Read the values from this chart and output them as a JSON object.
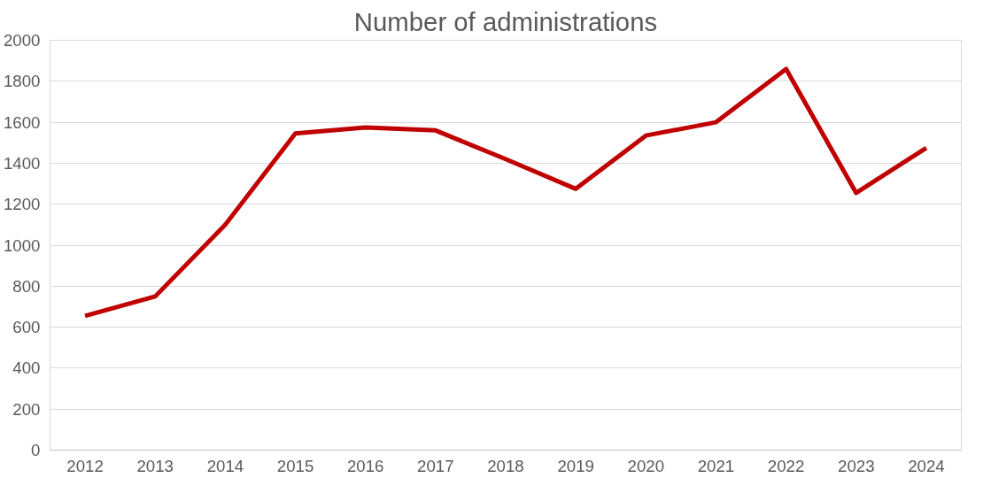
{
  "chart_data": {
    "type": "line",
    "title": "Number of administrations",
    "categories": [
      "2012",
      "2013",
      "2014",
      "2015",
      "2016",
      "2017",
      "2018",
      "2019",
      "2020",
      "2021",
      "2022",
      "2023",
      "2024"
    ],
    "series": [
      {
        "color": "#c00000",
        "values": [
          655,
          750,
          1100,
          1545,
          1575,
          1560,
          1420,
          1275,
          1535,
          1600,
          1860,
          1255,
          1475
        ]
      }
    ],
    "ylim": [
      0,
      2000
    ],
    "yticks": [
      0,
      200,
      400,
      600,
      800,
      1000,
      1200,
      1400,
      1600,
      1800,
      2000
    ],
    "grid": "y",
    "marker": "none",
    "line_style": "solid"
  }
}
